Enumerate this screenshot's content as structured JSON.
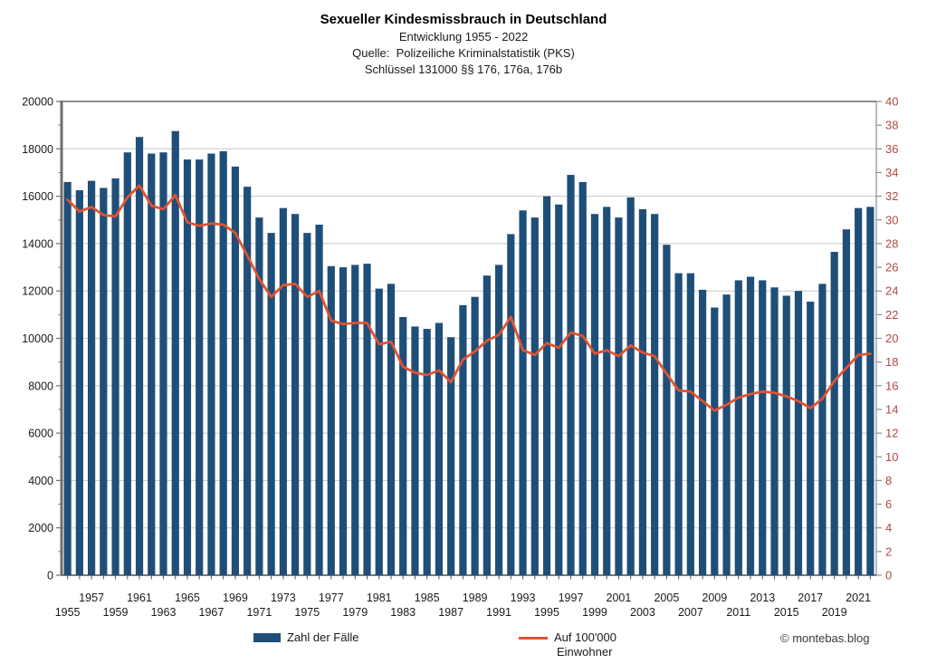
{
  "header": {
    "title": "Sexueller Kindesmissbrauch in Deutschland",
    "subtitle1": "Entwicklung 1955 - 2022",
    "subtitle2": "Quelle:  Polizeiliche Kriminalstatistik (PKS)",
    "subtitle3": "Schlüssel 131000 §§ 176, 176a, 176b"
  },
  "legend": {
    "bars_label": "Zahl der Fälle",
    "line_label1": "Auf 100'000",
    "line_label2": "Einwohner"
  },
  "footer": {
    "watermark": "© montebas.blog"
  },
  "colors": {
    "bar": "#1f4e79",
    "line": "#e05330",
    "right_axis_text": "#b04745",
    "grid": "#c8c8c8",
    "axis": "#8f8f8f",
    "axis_dark": "#6f6f6f",
    "text": "#1a1a1a"
  },
  "chart_data": {
    "type": "bar",
    "title": "Sexueller Kindesmissbrauch in Deutschland",
    "years": [
      1955,
      1956,
      1957,
      1958,
      1959,
      1960,
      1961,
      1962,
      1963,
      1964,
      1965,
      1966,
      1967,
      1968,
      1969,
      1970,
      1971,
      1972,
      1973,
      1974,
      1975,
      1976,
      1977,
      1978,
      1979,
      1980,
      1981,
      1982,
      1983,
      1984,
      1985,
      1986,
      1987,
      1988,
      1989,
      1990,
      1991,
      1992,
      1993,
      1994,
      1995,
      1996,
      1997,
      1998,
      1999,
      2000,
      2001,
      2002,
      2003,
      2004,
      2005,
      2006,
      2007,
      2008,
      2009,
      2010,
      2011,
      2012,
      2013,
      2014,
      2015,
      2016,
      2017,
      2018,
      2019,
      2020,
      2021,
      2022
    ],
    "series": [
      {
        "name": "Zahl der Fälle",
        "type": "bar",
        "axis": "left",
        "values": [
          16600,
          16250,
          16650,
          16350,
          16750,
          17850,
          18500,
          17800,
          17850,
          18750,
          17550,
          17550,
          17800,
          17900,
          17250,
          16400,
          15100,
          14450,
          15500,
          15250,
          14450,
          14800,
          13050,
          13000,
          13100,
          13150,
          12100,
          12300,
          10900,
          10500,
          10400,
          10650,
          10050,
          11400,
          11750,
          12650,
          13100,
          14400,
          15400,
          15100,
          16000,
          15650,
          16900,
          16600,
          15250,
          15550,
          15100,
          15950,
          15450,
          15250,
          13950,
          12750,
          12750,
          12050,
          11300,
          11850,
          12450,
          12600,
          12450,
          12150,
          11800,
          12000,
          11550,
          12300,
          13650,
          14600,
          15500,
          15550
        ]
      },
      {
        "name": "Auf 100'000 Einwohner",
        "type": "line",
        "axis": "right",
        "values": [
          31.7,
          30.7,
          31.1,
          30.4,
          30.3,
          31.9,
          32.9,
          31.2,
          30.9,
          32.1,
          29.8,
          29.5,
          29.7,
          29.6,
          28.9,
          27.0,
          25.0,
          23.5,
          24.5,
          24.6,
          23.5,
          24.0,
          21.5,
          21.2,
          21.3,
          21.3,
          19.5,
          19.7,
          17.6,
          17.1,
          16.9,
          17.3,
          16.3,
          18.2,
          18.9,
          19.8,
          20.3,
          21.8,
          19.0,
          18.6,
          19.6,
          19.2,
          20.5,
          20.2,
          18.7,
          19.0,
          18.5,
          19.4,
          18.8,
          18.5,
          17.0,
          15.6,
          15.5,
          14.7,
          13.9,
          14.4,
          15.0,
          15.3,
          15.5,
          15.4,
          15.1,
          14.7,
          14.1,
          14.9,
          16.4,
          17.5,
          18.6,
          18.7
        ]
      }
    ],
    "left_axis": {
      "min": 0,
      "max": 20000,
      "step": 2000,
      "ticks": [
        0,
        2000,
        4000,
        6000,
        8000,
        10000,
        12000,
        14000,
        16000,
        18000,
        20000
      ]
    },
    "right_axis": {
      "min": 0,
      "max": 40,
      "step": 2,
      "ticks": [
        0,
        2,
        4,
        6,
        8,
        10,
        12,
        14,
        16,
        18,
        20,
        22,
        24,
        26,
        28,
        30,
        32,
        34,
        36,
        38,
        40
      ]
    },
    "x_tick_years_upper": [
      1957,
      1961,
      1965,
      1969,
      1973,
      1977,
      1981,
      1985,
      1989,
      1993,
      1997,
      2001,
      2005,
      2009,
      2013,
      2017,
      2021
    ],
    "x_tick_years_lower": [
      1955,
      1959,
      1963,
      1967,
      1971,
      1975,
      1979,
      1983,
      1987,
      1991,
      1995,
      1999,
      2003,
      2007,
      2011,
      2015,
      2019
    ],
    "grid": "horizontal-major",
    "legend_position": "bottom"
  }
}
